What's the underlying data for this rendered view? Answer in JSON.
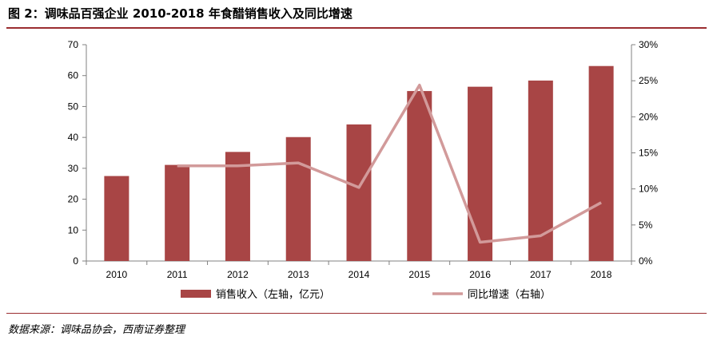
{
  "chart_data": {
    "type": "bar",
    "title": "图 2：调味品百强企业 2010-2018 年食醋销售收入及同比增速",
    "source": "数据来源：调味品协会，西南证券整理",
    "categories": [
      "2010",
      "2011",
      "2012",
      "2013",
      "2014",
      "2015",
      "2016",
      "2017",
      "2018"
    ],
    "series": [
      {
        "name": "销售收入（左轴，亿元）",
        "type": "bar",
        "axis": "left",
        "color": "#a84545",
        "values": [
          27.5,
          31.1,
          35.3,
          40.1,
          44.2,
          55.0,
          56.4,
          58.4,
          63.1
        ]
      },
      {
        "name": "同比增速（右轴）",
        "type": "line",
        "axis": "right",
        "color": "#d29a9a",
        "values": [
          null,
          13.2,
          13.2,
          13.6,
          10.2,
          24.4,
          2.6,
          3.5,
          8.1
        ]
      }
    ],
    "y_left": {
      "min": 0,
      "max": 70,
      "ticks": [
        "0",
        "10",
        "20",
        "30",
        "40",
        "50",
        "60",
        "70"
      ]
    },
    "y_right": {
      "min": 0,
      "max": 30,
      "ticks": [
        "0%",
        "5%",
        "10%",
        "15%",
        "20%",
        "25%",
        "30%"
      ]
    },
    "grid": false,
    "legend_position": "bottom"
  }
}
